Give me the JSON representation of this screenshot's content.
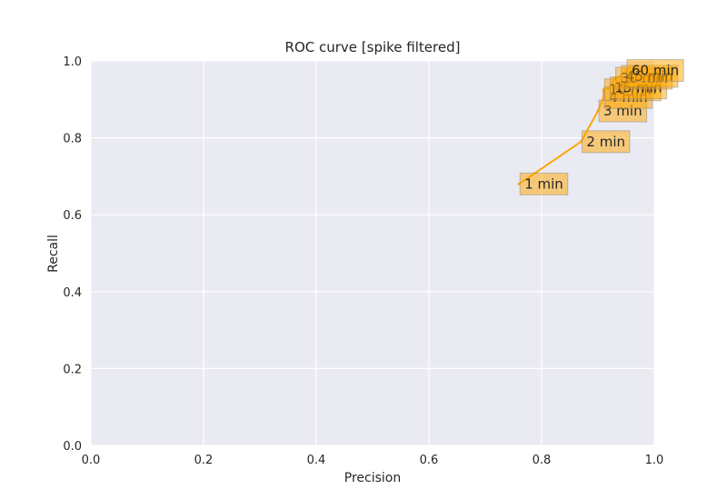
{
  "chart_data": {
    "type": "line",
    "title": "ROC curve [spike filtered]",
    "xlabel": "Precision",
    "ylabel": "Recall",
    "xlim": [
      0.0,
      1.0
    ],
    "ylim": [
      0.0,
      1.0
    ],
    "xticks": [
      "0.0",
      "0.2",
      "0.4",
      "0.6",
      "0.8",
      "1.0"
    ],
    "yticks": [
      "0.0",
      "0.2",
      "0.4",
      "0.6",
      "0.8",
      "1.0"
    ],
    "grid": true,
    "colors": {
      "plot_bg": "#eaeaf2",
      "grid": "#ffffff",
      "line": "#ffa500",
      "label_fill": "#ffa500"
    },
    "points": [
      {
        "label": "1 min",
        "precision": 0.76,
        "recall": 0.68
      },
      {
        "label": "2 min",
        "precision": 0.87,
        "recall": 0.79
      },
      {
        "label": "3 min",
        "precision": 0.9,
        "recall": 0.87
      },
      {
        "label": "4 min",
        "precision": 0.91,
        "recall": 0.905
      },
      {
        "label": "10 min",
        "precision": 0.91,
        "recall": 0.925
      },
      {
        "label": "15 min",
        "precision": 0.92,
        "recall": 0.93
      },
      {
        "label": "30 min",
        "precision": 0.93,
        "recall": 0.955
      },
      {
        "label": "45 min",
        "precision": 0.94,
        "recall": 0.96
      },
      {
        "label": "60 min",
        "precision": 0.95,
        "recall": 0.975
      }
    ]
  }
}
